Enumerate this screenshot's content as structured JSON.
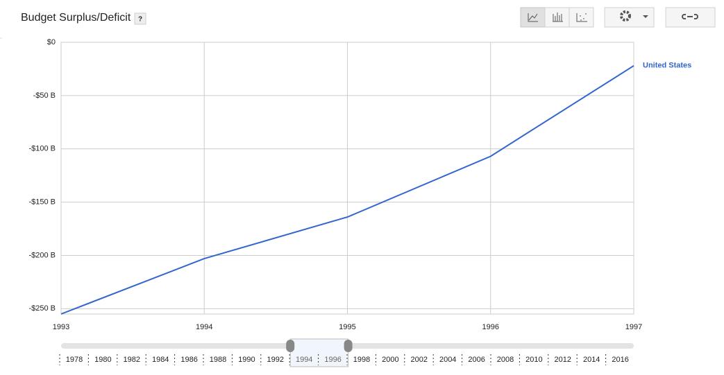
{
  "chart_data": {
    "type": "line",
    "title": "Budget Surplus/Deficit",
    "help": "?",
    "x": [
      1993,
      1994,
      1995,
      1996,
      1997
    ],
    "series": [
      {
        "name": "United States",
        "color": "#3366cc",
        "values": [
          -255,
          -203,
          -164,
          -107,
          -22
        ]
      }
    ],
    "xlim": [
      1993,
      1997
    ],
    "xticks": [
      1993,
      1994,
      1995,
      1996,
      1997
    ],
    "ylim": [
      -255,
      0
    ],
    "yticks": [
      {
        "value": 0,
        "label": "$0"
      },
      {
        "value": -50,
        "label": "-$50 B"
      },
      {
        "value": -100,
        "label": "-$100 B"
      },
      {
        "value": -150,
        "label": "-$150 B"
      },
      {
        "value": -200,
        "label": "-$200 B"
      },
      {
        "value": -250,
        "label": "-$250 B"
      }
    ],
    "grid": true
  },
  "timeline": {
    "years": [
      1978,
      1980,
      1982,
      1984,
      1986,
      1988,
      1990,
      1992,
      1994,
      1996,
      1998,
      2000,
      2002,
      2004,
      2006,
      2008,
      2010,
      2012,
      2014,
      2016
    ],
    "range": [
      1994,
      1996
    ]
  }
}
